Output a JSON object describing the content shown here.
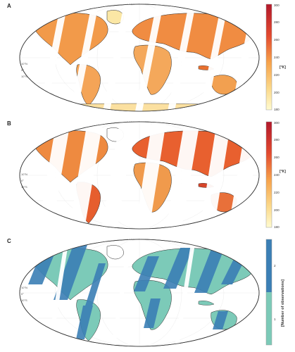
{
  "panels": [
    {
      "letter": "A",
      "lon_labels": "90°W 0° 90°E",
      "lat_labels": [
        "10°N",
        "0°",
        "10°S"
      ],
      "colorbar": {
        "label": "[°K]",
        "ticks": [
          "300",
          "280",
          "260",
          "240",
          "220",
          "200",
          "180"
        ],
        "colors": [
          "#b2182b",
          "#d6452a",
          "#ef8a3a",
          "#f7b35c",
          "#fbd98b",
          "#fff3b8"
        ]
      }
    },
    {
      "letter": "B",
      "lon_labels": "90°W 0° 90°E",
      "lat_labels": [
        "10°N",
        "0°",
        "10°S"
      ],
      "colorbar": {
        "label": "[°K]",
        "ticks": [
          "300",
          "280",
          "260",
          "240",
          "220",
          "200",
          "180"
        ],
        "colors": [
          "#b2182b",
          "#d6452a",
          "#ef8a3a",
          "#f7b35c",
          "#fbd98b",
          "#fff3b8"
        ]
      }
    },
    {
      "letter": "C",
      "lon_labels": "90°W 0° 90°E",
      "lat_labels": [
        "10°N",
        "0°",
        "10°S"
      ],
      "colorbar": {
        "label": "[Number of observations]",
        "ticks": [
          "2",
          "1"
        ],
        "colors": [
          "#3b7fb5",
          "#7ccab8"
        ]
      }
    }
  ]
}
